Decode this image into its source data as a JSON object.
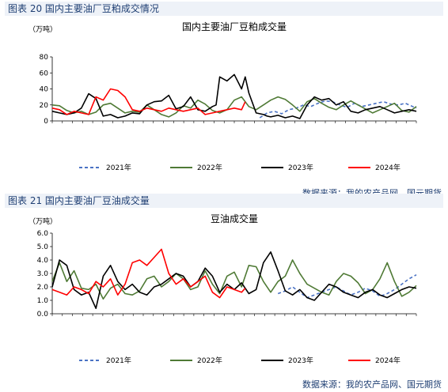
{
  "figures": [
    {
      "label": "图表 20 国内主要油厂豆粕成交情况",
      "source": "数据来源：我的农产品网、国元期货"
    },
    {
      "label": "图表 21 国内主要油厂豆油成交量",
      "source": "数据来源：我的农产品网、国元期货"
    }
  ],
  "colors": {
    "2021": "#4a72c4",
    "2022": "#4f7a35",
    "2023": "#000000",
    "2024": "#ff0000",
    "header_text": "#1f3f73"
  },
  "chart_data": [
    {
      "type": "line",
      "title": "国内主要油厂豆粕成交量",
      "unit": "（万吨）",
      "ylim": [
        0,
        80
      ],
      "yticks": [
        0,
        20,
        40,
        60,
        80
      ],
      "xlim": [
        0,
        100
      ],
      "grid": false,
      "legend": "bottom",
      "series": [
        {
          "name": "2021年",
          "dash": true,
          "x": [
            57,
            59,
            61,
            63,
            65,
            67,
            69,
            71,
            73,
            75,
            77,
            79,
            81,
            83,
            85,
            87,
            89,
            91,
            93,
            95,
            97,
            99,
            100
          ],
          "y": [
            4,
            10,
            12,
            9,
            14,
            16,
            20,
            18,
            22,
            25,
            24,
            20,
            17,
            22,
            18,
            20,
            22,
            24,
            21,
            20,
            22,
            18,
            16
          ]
        },
        {
          "name": "2022年",
          "x": [
            0,
            2,
            4,
            6,
            8,
            10,
            12,
            14,
            16,
            18,
            20,
            22,
            24,
            26,
            28,
            30,
            32,
            34,
            36,
            38,
            40,
            42,
            44,
            46,
            48,
            50,
            52,
            54,
            56,
            58,
            60,
            62,
            64,
            66,
            68,
            70,
            72,
            74,
            76,
            78,
            80,
            82,
            84,
            86,
            88,
            90,
            92,
            94,
            96,
            98,
            100
          ],
          "y": [
            20,
            19,
            13,
            10,
            12,
            8,
            11,
            20,
            22,
            16,
            10,
            12,
            11,
            20,
            14,
            8,
            5,
            10,
            19,
            16,
            26,
            21,
            13,
            10,
            14,
            26,
            30,
            18,
            14,
            20,
            26,
            30,
            27,
            20,
            12,
            24,
            28,
            22,
            17,
            14,
            20,
            25,
            20,
            15,
            10,
            14,
            18,
            22,
            13,
            11,
            18
          ]
        },
        {
          "name": "2023年",
          "x": [
            0,
            2,
            4,
            6,
            8,
            10,
            12,
            14,
            16,
            18,
            20,
            22,
            24,
            26,
            28,
            30,
            32,
            34,
            36,
            38,
            40,
            42,
            44,
            45,
            46,
            48,
            50,
            52,
            53,
            54,
            56,
            58,
            59,
            60,
            62,
            64,
            66,
            68,
            70,
            72,
            74,
            76,
            78,
            80,
            82,
            84,
            86,
            88,
            90,
            92,
            94,
            96,
            98,
            100
          ],
          "y": [
            12,
            10,
            8,
            10,
            16,
            34,
            28,
            6,
            8,
            4,
            6,
            10,
            9,
            20,
            24,
            25,
            32,
            15,
            18,
            30,
            14,
            12,
            18,
            20,
            55,
            50,
            58,
            40,
            55,
            35,
            10,
            8,
            6,
            5,
            7,
            4,
            6,
            3,
            20,
            30,
            26,
            28,
            20,
            24,
            12,
            10,
            14,
            16,
            18,
            14,
            10,
            12,
            14,
            12
          ]
        },
        {
          "name": "2024年",
          "x": [
            0,
            2,
            4,
            6,
            8,
            10,
            12,
            14,
            16,
            18,
            20,
            22,
            24,
            26,
            28,
            30,
            32,
            34,
            36,
            38,
            40,
            42,
            44,
            46,
            48,
            50,
            52,
            53
          ],
          "y": [
            16,
            14,
            8,
            12,
            10,
            8,
            30,
            26,
            40,
            38,
            30,
            14,
            12,
            16,
            14,
            12,
            16,
            14,
            12,
            14,
            16,
            8,
            10,
            12,
            14,
            16,
            14,
            24
          ]
        }
      ]
    },
    {
      "type": "line",
      "title": "豆油成交量",
      "unit": "（万吨）",
      "ylim": [
        0,
        6
      ],
      "yticks": [
        "0.0",
        "1.0",
        "2.0",
        "3.0",
        "4.0",
        "5.0",
        "6.0"
      ],
      "xlim": [
        0,
        100
      ],
      "grid": false,
      "legend": "bottom",
      "series": [
        {
          "name": "2021年",
          "dash": true,
          "x": [
            62,
            64,
            66,
            68,
            70,
            72,
            74,
            76,
            78,
            80,
            82,
            84,
            86,
            88,
            90,
            92,
            94,
            96,
            98,
            100
          ],
          "y": [
            1.5,
            1.7,
            2.0,
            1.6,
            1.2,
            1.4,
            1.6,
            1.8,
            2.0,
            1.7,
            1.4,
            1.6,
            1.9,
            1.7,
            1.3,
            1.5,
            1.8,
            2.2,
            2.6,
            2.9
          ]
        },
        {
          "name": "2022年",
          "x": [
            0,
            2,
            4,
            6,
            8,
            10,
            12,
            14,
            16,
            18,
            20,
            22,
            24,
            26,
            28,
            30,
            32,
            34,
            36,
            38,
            40,
            42,
            44,
            46,
            48,
            50,
            52,
            54,
            56,
            58,
            60,
            62,
            64,
            66,
            68,
            70,
            72,
            74,
            76,
            78,
            80,
            82,
            84,
            86,
            88,
            90,
            92,
            94,
            96,
            98,
            100
          ],
          "y": [
            2.4,
            3.8,
            2.4,
            3.2,
            1.9,
            1.8,
            2.2,
            1.1,
            1.9,
            2.2,
            1.5,
            1.4,
            1.7,
            2.6,
            2.8,
            2.0,
            2.4,
            3.0,
            2.6,
            1.8,
            2.0,
            3.2,
            2.2,
            1.5,
            2.8,
            3.1,
            2.0,
            3.6,
            3.5,
            2.4,
            1.6,
            2.4,
            2.8,
            4.0,
            3.0,
            2.2,
            1.9,
            1.6,
            1.4,
            2.4,
            3.0,
            2.8,
            2.3,
            1.5,
            1.8,
            2.6,
            3.8,
            2.4,
            1.3,
            1.6,
            2.1
          ]
        },
        {
          "name": "2023年",
          "x": [
            0,
            2,
            4,
            6,
            8,
            10,
            12,
            14,
            16,
            18,
            20,
            22,
            24,
            26,
            28,
            30,
            32,
            34,
            36,
            38,
            40,
            42,
            44,
            46,
            48,
            50,
            52,
            54,
            56,
            58,
            60,
            62,
            64,
            66,
            68,
            70,
            72,
            74,
            76,
            78,
            80,
            82,
            84,
            86,
            88,
            90,
            92,
            94,
            96,
            98,
            100
          ],
          "y": [
            2.0,
            4.0,
            3.6,
            1.8,
            1.4,
            1.6,
            0.4,
            2.8,
            3.6,
            2.4,
            1.8,
            2.2,
            1.6,
            1.4,
            2.0,
            2.2,
            2.6,
            3.0,
            2.8,
            2.0,
            2.4,
            3.4,
            2.8,
            1.6,
            2.2,
            1.8,
            2.3,
            1.5,
            1.8,
            3.8,
            4.6,
            3.2,
            1.7,
            1.4,
            1.8,
            1.2,
            1.0,
            1.6,
            2.2,
            2.0,
            1.6,
            1.4,
            1.2,
            1.6,
            1.8,
            1.4,
            1.2,
            1.5,
            1.8,
            2.0,
            1.9
          ]
        },
        {
          "name": "2024年",
          "x": [
            0,
            2,
            4,
            6,
            8,
            10,
            12,
            14,
            16,
            18,
            20,
            22,
            24,
            26,
            28,
            30,
            32,
            34,
            36,
            38,
            40,
            42,
            44,
            46,
            48,
            50,
            52,
            53
          ],
          "y": [
            1.8,
            1.6,
            1.4,
            2.0,
            1.8,
            1.5,
            2.4,
            2.0,
            2.6,
            1.4,
            2.2,
            3.8,
            4.0,
            3.6,
            4.2,
            4.8,
            3.0,
            2.2,
            2.6,
            2.0,
            2.4,
            2.8,
            1.6,
            1.2,
            2.0,
            1.8,
            1.6,
            1.9
          ]
        }
      ]
    }
  ]
}
